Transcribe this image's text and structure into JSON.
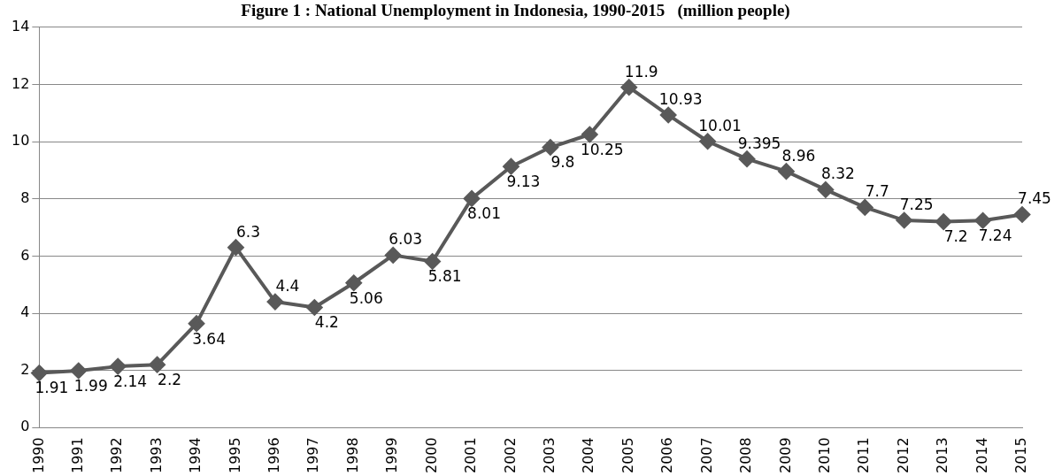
{
  "chart_data": {
    "type": "line",
    "title": "Figure 1 : National Unemployment in Indonesia, 1990-2015   (million people)",
    "categories": [
      "1990",
      "1991",
      "1992",
      "1993",
      "1994",
      "1995",
      "1996",
      "1997",
      "1998",
      "1999",
      "2000",
      "2001",
      "2002",
      "2003",
      "2004",
      "2005",
      "2006",
      "2007",
      "2008",
      "2009",
      "2010",
      "2011",
      "2012",
      "2013",
      "2014",
      "2015"
    ],
    "series": [
      {
        "color": "#595959",
        "values": [
          1.91,
          1.99,
          2.14,
          2.2,
          3.64,
          6.3,
          4.4,
          4.2,
          5.06,
          6.03,
          5.81,
          8.01,
          9.13,
          9.8,
          10.25,
          11.9,
          10.93,
          10.01,
          9.395,
          8.96,
          8.32,
          7.7,
          7.25,
          7.2,
          7.24,
          7.45
        ]
      }
    ],
    "ylim": [
      0,
      14
    ],
    "yticks": [
      0,
      2,
      4,
      6,
      8,
      10,
      12,
      14
    ],
    "grid": "y",
    "marker": "diamond",
    "line_style": "solid",
    "data_labels": true,
    "legend": false
  }
}
